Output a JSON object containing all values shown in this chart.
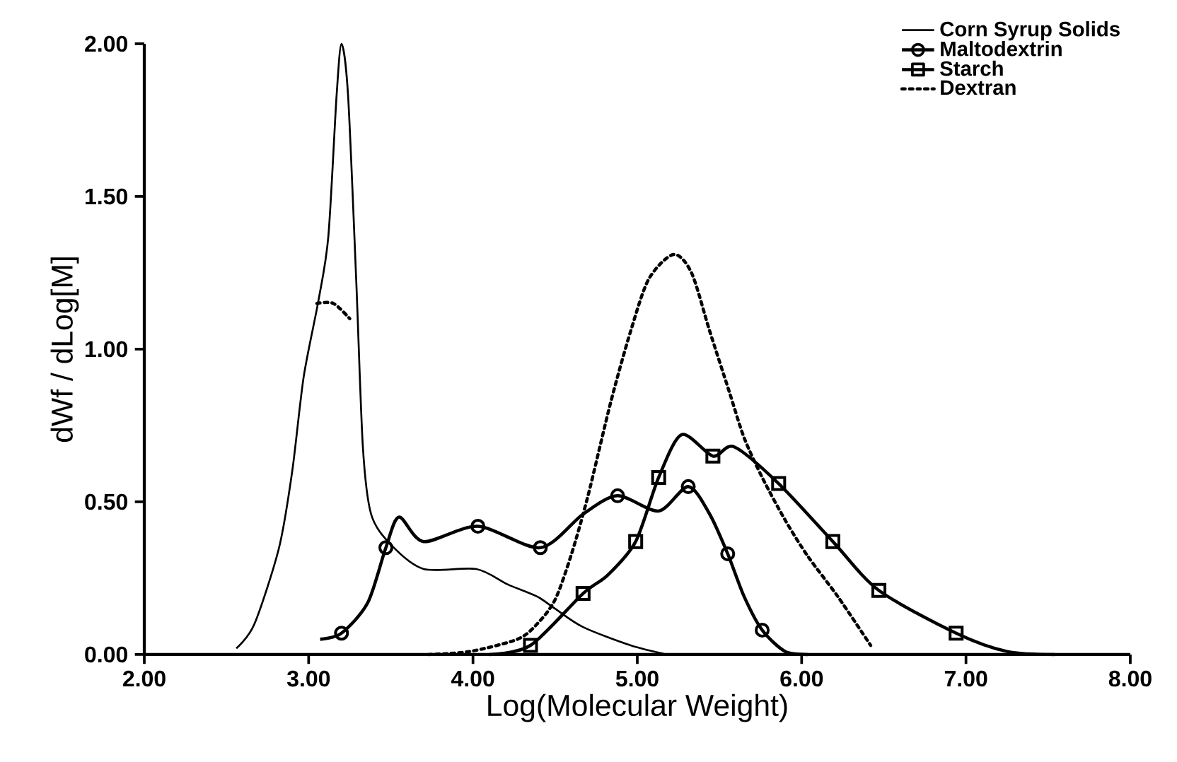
{
  "chart_data": {
    "type": "line",
    "xlabel": "Log(Molecular Weight)",
    "ylabel": "dWf / dLog[M]",
    "xlim": [
      2,
      8
    ],
    "ylim": [
      0,
      2
    ],
    "xticks": [
      {
        "value": 2,
        "label": "2.00"
      },
      {
        "value": 3,
        "label": "3.00"
      },
      {
        "value": 4,
        "label": "4.00"
      },
      {
        "value": 5,
        "label": "5.00"
      },
      {
        "value": 6,
        "label": "6.00"
      },
      {
        "value": 7,
        "label": "7.00"
      },
      {
        "value": 8,
        "label": "8.00"
      }
    ],
    "yticks": [
      {
        "value": 0,
        "label": "0.00"
      },
      {
        "value": 0.5,
        "label": "0.50"
      },
      {
        "value": 1,
        "label": "1.00"
      },
      {
        "value": 1.5,
        "label": "1.50"
      },
      {
        "value": 2,
        "label": "2.00"
      }
    ],
    "grid": false,
    "legend": "top right",
    "series": [
      {
        "name": "Corn Syrup Solids",
        "color": "#000000",
        "line_style": "solid",
        "x": [
          2.56,
          2.67,
          2.82,
          2.9,
          2.97,
          3.06,
          3.12,
          3.17,
          3.2,
          3.24,
          3.29,
          3.33,
          3.38,
          3.5,
          3.7,
          4.02,
          4.21,
          4.39,
          4.5,
          4.67,
          4.96,
          5.18
        ],
        "values": [
          0.02,
          0.1,
          0.35,
          0.6,
          0.91,
          1.16,
          1.37,
          1.83,
          2.0,
          1.83,
          1.22,
          0.68,
          0.46,
          0.36,
          0.28,
          0.28,
          0.23,
          0.19,
          0.15,
          0.09,
          0.03,
          0.0
        ]
      },
      {
        "name": "Maltodextrin",
        "color": "#000000",
        "line_style": "solid",
        "x": [
          3.07,
          3.2,
          3.36,
          3.47,
          3.55,
          3.7,
          4.03,
          4.41,
          4.67,
          4.88,
          5.13,
          5.31,
          5.44,
          5.55,
          5.65,
          5.76,
          5.9,
          6.04
        ],
        "values": [
          0.05,
          0.07,
          0.17,
          0.35,
          0.45,
          0.37,
          0.42,
          0.35,
          0.46,
          0.52,
          0.47,
          0.55,
          0.46,
          0.33,
          0.19,
          0.08,
          0.01,
          0.0
        ]
      },
      {
        "type": "scatter",
        "color": "#000000",
        "marker": "circle",
        "x": [
          3.2,
          3.47,
          4.03,
          4.41,
          4.88,
          5.31,
          5.55,
          5.76
        ],
        "values": [
          0.07,
          0.35,
          0.42,
          0.35,
          0.52,
          0.55,
          0.33,
          0.08
        ]
      },
      {
        "name": "Starch",
        "color": "#000000",
        "line_style": "solid",
        "x": [
          4.1,
          4.35,
          4.67,
          4.82,
          4.99,
          5.13,
          5.27,
          5.46,
          5.59,
          5.86,
          6.19,
          6.47,
          6.94,
          7.25,
          7.54
        ],
        "values": [
          0.0,
          0.03,
          0.2,
          0.26,
          0.37,
          0.58,
          0.72,
          0.65,
          0.68,
          0.56,
          0.37,
          0.21,
          0.07,
          0.01,
          0.0
        ]
      },
      {
        "type": "scatter",
        "color": "#000000",
        "marker": "square",
        "x": [
          4.35,
          4.67,
          4.99,
          5.13,
          5.46,
          5.86,
          6.19,
          6.47,
          6.94
        ],
        "values": [
          0.03,
          0.2,
          0.37,
          0.58,
          0.65,
          0.56,
          0.37,
          0.21,
          0.07
        ]
      },
      {
        "name": "Dextran",
        "color": "#000000",
        "line_style": "dotted",
        "x": [
          3.05,
          3.15,
          3.25,
          3.4,
          3.73,
          3.98,
          4.27,
          4.39,
          4.5,
          4.6,
          4.7,
          4.84,
          4.96,
          5.07,
          5.22,
          5.33,
          5.44,
          5.56,
          5.65,
          5.76,
          5.9,
          6.04,
          6.22,
          6.42
        ],
        "values": [
          1.15,
          1.15,
          1.1,
          null,
          0.0,
          0.01,
          0.05,
          0.1,
          0.18,
          0.33,
          0.52,
          0.83,
          1.06,
          1.23,
          1.31,
          1.25,
          1.06,
          0.86,
          0.71,
          0.58,
          0.44,
          0.32,
          0.19,
          0.03
        ]
      }
    ]
  }
}
